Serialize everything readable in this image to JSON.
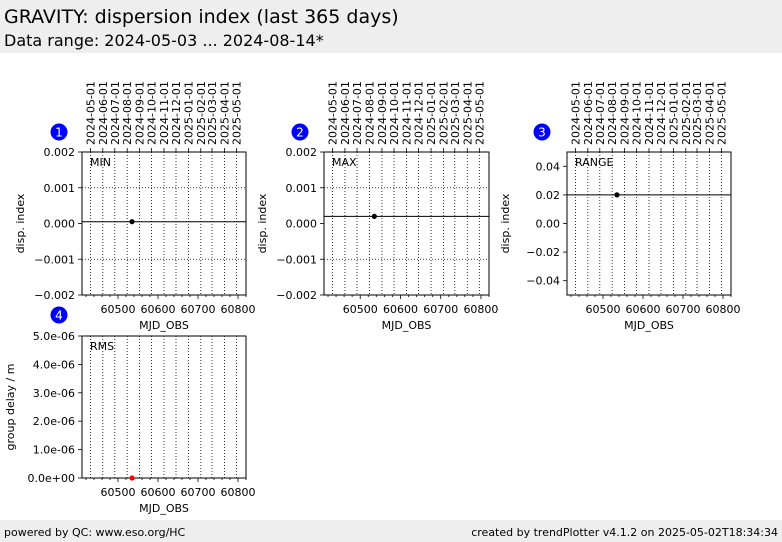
{
  "header": {
    "title": "GRAVITY: dispersion index (last 365 days)",
    "subtitle": "Data range: 2024-05-03 ... 2024-08-14*"
  },
  "footer": {
    "left": "powered by QC: www.eso.org/HC",
    "right": "created by trendPlotter v4.1.2 on 2025-05-02T18:34:34"
  },
  "colors": {
    "badge": "#0000ff",
    "point": "#000000",
    "rms_point": "#ff0000",
    "background_band": "#eeeeee"
  },
  "date_ticks": [
    "2024-05-01",
    "2024-06-01",
    "2024-07-01",
    "2024-08-01",
    "2024-09-01",
    "2024-10-01",
    "2024-11-01",
    "2024-12-01",
    "2025-01-01",
    "2025-02-01",
    "2025-03-01",
    "2025-04-01",
    "2025-05-01"
  ],
  "date_ticks_mjd": [
    60431,
    60462,
    60492,
    60523,
    60554,
    60584,
    60615,
    60645,
    60676,
    60707,
    60735,
    60766,
    60796
  ],
  "chart_data": [
    {
      "type": "scatter",
      "badge": "1",
      "panel_label": "MIN",
      "xlabel": "MJD_OBS",
      "ylabel": "disp. index",
      "xlim": [
        60410,
        60820
      ],
      "ylim": [
        -0.002,
        0.002
      ],
      "xticks": [
        60500,
        60600,
        60700,
        60800
      ],
      "yticks": [
        -0.002,
        -0.001,
        0.0,
        0.001,
        0.002
      ],
      "ytick_labels": [
        "−0.002",
        "−0.001",
        "0.000",
        "0.001",
        "0.002"
      ],
      "ygrid": [
        -0.001,
        0.001
      ],
      "reference_line": 5e-05,
      "points": [
        {
          "x": 60535,
          "y": 5e-05
        }
      ]
    },
    {
      "type": "scatter",
      "badge": "2",
      "panel_label": "MAX",
      "xlabel": "MJD_OBS",
      "ylabel": "disp. index",
      "xlim": [
        60410,
        60820
      ],
      "ylim": [
        -0.002,
        0.002
      ],
      "xticks": [
        60500,
        60600,
        60700,
        60800
      ],
      "yticks": [
        -0.002,
        -0.001,
        0.0,
        0.001,
        0.002
      ],
      "ytick_labels": [
        "−0.002",
        "−0.001",
        "0.000",
        "0.001",
        "0.002"
      ],
      "ygrid": [
        -0.001,
        0.001
      ],
      "reference_line": 0.0002,
      "points": [
        {
          "x": 60535,
          "y": 0.0002
        }
      ]
    },
    {
      "type": "scatter",
      "badge": "3",
      "panel_label": "RANGE",
      "xlabel": "MJD_OBS",
      "ylabel": "disp. index",
      "xlim": [
        60410,
        60820
      ],
      "ylim": [
        -0.05,
        0.05
      ],
      "xticks": [
        60500,
        60600,
        60700,
        60800
      ],
      "yticks": [
        -0.04,
        -0.02,
        0.0,
        0.02,
        0.04
      ],
      "ytick_labels": [
        "−0.04",
        "−0.02",
        "0.00",
        "0.02",
        "0.04"
      ],
      "ygrid": [],
      "reference_line": 0.02,
      "points": [
        {
          "x": 60535,
          "y": 0.02
        }
      ]
    },
    {
      "type": "scatter",
      "badge": "4",
      "panel_label": "RMS",
      "xlabel": "MJD_OBS",
      "ylabel": "group delay / m",
      "xlim": [
        60410,
        60820
      ],
      "ylim": [
        0,
        5e-06
      ],
      "xticks": [
        60500,
        60600,
        60700,
        60800
      ],
      "yticks": [
        0,
        1e-06,
        2e-06,
        3e-06,
        4e-06,
        5e-06
      ],
      "ytick_labels": [
        "0.0e+00",
        "1.0e-06",
        "2.0e-06",
        "3.0e-06",
        "4.0e-06",
        "5.0e-06"
      ],
      "ygrid": [],
      "reference_line": null,
      "point_color": "#ff0000",
      "points": [
        {
          "x": 60535,
          "y": 0
        }
      ]
    }
  ]
}
